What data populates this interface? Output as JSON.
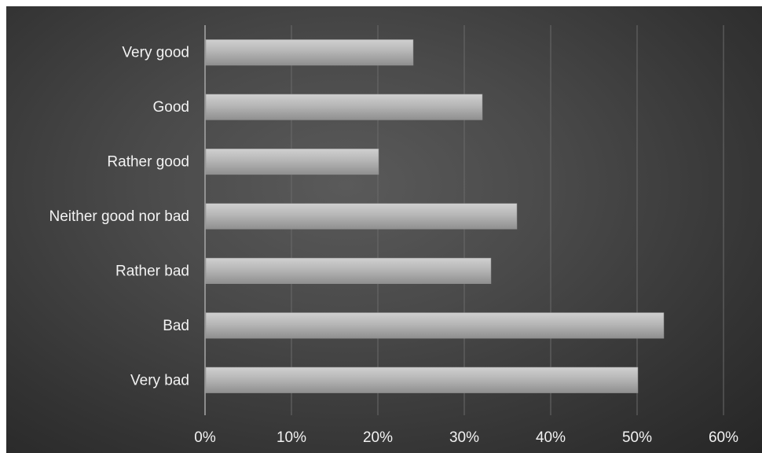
{
  "chart_data": {
    "type": "bar",
    "orientation": "horizontal",
    "categories": [
      "Very good",
      "Good",
      "Rather good",
      "Neither good nor bad",
      "Rather bad",
      "Bad",
      "Very bad"
    ],
    "values": [
      0.24,
      0.32,
      0.2,
      0.36,
      0.33,
      0.53,
      0.5
    ],
    "xlim": [
      0,
      0.6
    ],
    "xticks": [
      0,
      0.1,
      0.2,
      0.3,
      0.4,
      0.5,
      0.6
    ],
    "xtick_labels": [
      "0%",
      "10%",
      "20%",
      "30%",
      "40%",
      "50%",
      "60%"
    ],
    "title": "",
    "xlabel": "",
    "ylabel": "",
    "grid": true,
    "legend": "none",
    "colors": {
      "bar": "#b4b4b4",
      "bar_highlight": "#cfcfcf",
      "bar_shadow": "#8e8e8e",
      "grid": "#6a6a6a",
      "axis": "#a8a8a8",
      "text": "#f2f2f2"
    }
  }
}
